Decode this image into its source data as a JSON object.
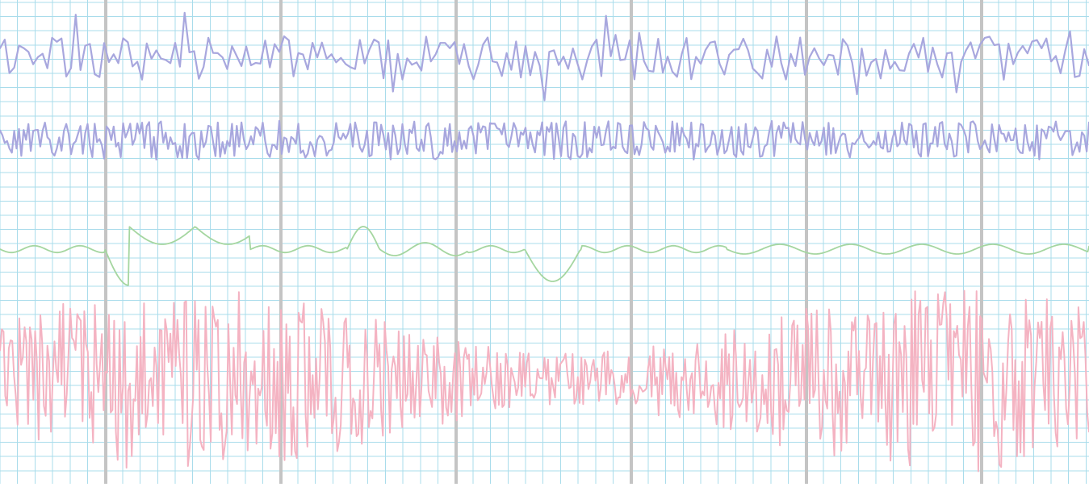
{
  "recording": {
    "paper_color": "#ffffff",
    "grid": {
      "minor_line_color": "#a9dceb",
      "major_line_color": "#c4c4c4"
    },
    "channels": [
      {
        "name": "channel-1-trace",
        "color": "#a8a7de",
        "stroke": 2.2,
        "kind": "spiky",
        "level": 0.12,
        "amp": 0.045,
        "seed": 11,
        "samples": 230
      },
      {
        "name": "channel-2-trace",
        "color": "#a8a7de",
        "stroke": 2.2,
        "kind": "dense",
        "level": 0.29,
        "amp": 0.04,
        "seed": 23,
        "samples": 460
      },
      {
        "name": "channel-3-trace",
        "color": "#a5d6a0",
        "stroke": 1.8,
        "kind": "slow",
        "level": 0.515,
        "amp": 0.02,
        "seed": 37,
        "samples": 900
      },
      {
        "name": "channel-4-trace",
        "color": "#f4b3c2",
        "stroke": 2.0,
        "kind": "noise",
        "level": 0.785,
        "amp": 0.1,
        "seed": 53,
        "samples": 620
      }
    ]
  }
}
